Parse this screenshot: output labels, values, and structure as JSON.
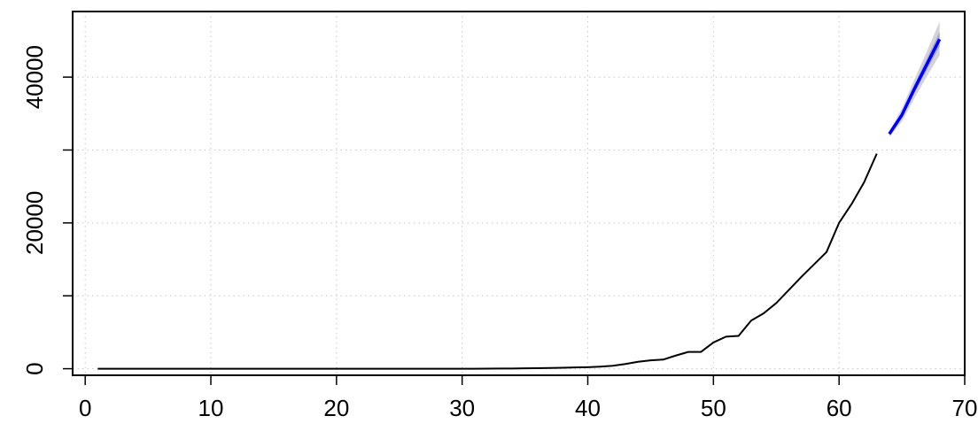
{
  "chart_data": {
    "type": "line",
    "title": "",
    "xlabel": "",
    "ylabel": "",
    "xlim": [
      -1,
      70
    ],
    "ylim": [
      -900,
      49000
    ],
    "grid": true,
    "x_ticks": [
      0,
      10,
      20,
      30,
      40,
      50,
      60,
      70
    ],
    "x_tick_labels": [
      "0",
      "10",
      "20",
      "30",
      "40",
      "50",
      "60",
      "70"
    ],
    "y_ticks": [
      0,
      10000,
      20000,
      30000,
      40000
    ],
    "y_tick_labels": [
      "0",
      "",
      "20000",
      "",
      "40000"
    ],
    "colors": {
      "observed": "#000000",
      "forecast": "#0000ff",
      "band_outer": "#d4d4d8",
      "band_inner": "#a8a8b8",
      "grid": "#c8c8c8"
    },
    "series": [
      {
        "role": "observed",
        "x": [
          1,
          2,
          3,
          4,
          5,
          6,
          7,
          8,
          9,
          10,
          11,
          12,
          13,
          14,
          15,
          16,
          17,
          18,
          19,
          20,
          21,
          22,
          23,
          24,
          25,
          26,
          27,
          28,
          29,
          30,
          31,
          32,
          33,
          34,
          35,
          36,
          37,
          38,
          39,
          40,
          41,
          42,
          43,
          44,
          45,
          46,
          47,
          48,
          49,
          50,
          51,
          52,
          53,
          54,
          55,
          56,
          57,
          58,
          59,
          60,
          61,
          62,
          63
        ],
        "y": [
          0,
          0,
          0,
          0,
          0,
          0,
          0,
          0,
          0,
          0,
          0,
          0,
          0,
          0,
          0,
          0,
          0,
          0,
          0,
          0,
          0,
          0,
          0,
          0,
          0,
          0,
          0,
          0,
          0,
          0,
          0,
          10,
          20,
          30,
          50,
          70,
          100,
          130,
          170,
          210,
          280,
          400,
          650,
          950,
          1150,
          1250,
          1800,
          2300,
          2300,
          3600,
          4400,
          4500,
          6600,
          7600,
          9000,
          10800,
          12600,
          14300,
          16000,
          20000,
          22600,
          25600,
          29500
        ]
      },
      {
        "role": "forecast",
        "x": [
          64,
          65,
          66,
          67,
          68
        ],
        "y": [
          32200,
          34800,
          38400,
          41800,
          45200
        ],
        "interval_inner_lower": [
          32000,
          34400,
          37800,
          41000,
          44200
        ],
        "interval_inner_upper": [
          32400,
          35200,
          39000,
          42600,
          46200
        ],
        "interval_outer_lower": [
          31800,
          33900,
          37100,
          40100,
          43000
        ],
        "interval_outer_upper": [
          32600,
          35700,
          39700,
          43600,
          47600
        ]
      }
    ]
  }
}
